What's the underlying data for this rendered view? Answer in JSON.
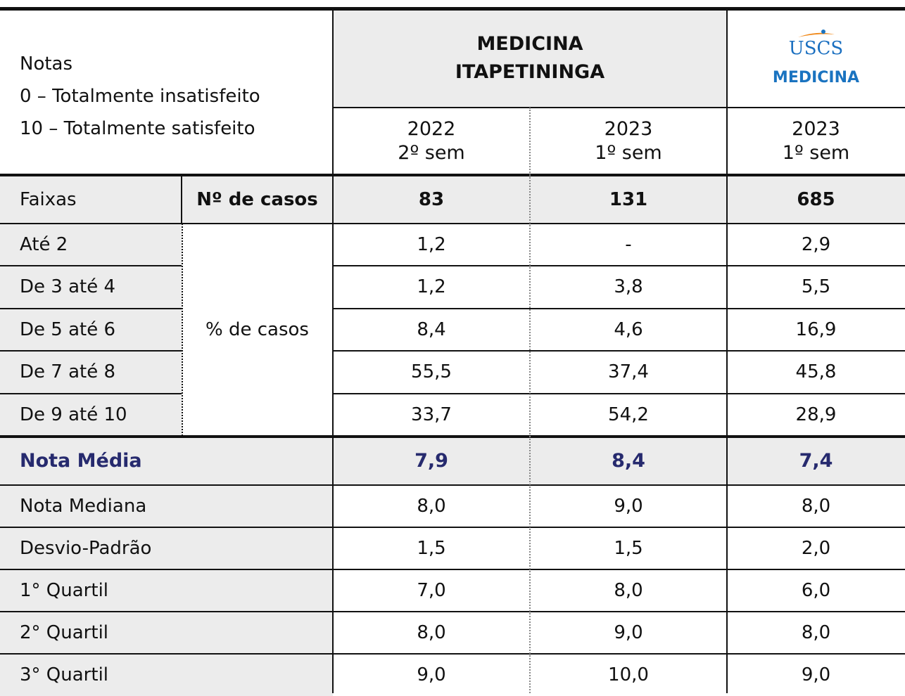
{
  "notes": [
    "Notas",
    "0 – Totalmente insatisfeito",
    "10 – Totalmente satisfeito"
  ],
  "group_header": [
    "MEDICINA",
    "ITAPETININGA"
  ],
  "logo": {
    "brand": "USCS",
    "label": "MEDICINA"
  },
  "columns": [
    {
      "year": "2022",
      "semester": "2º sem"
    },
    {
      "year": "2023",
      "semester": "1º sem"
    },
    {
      "year": "2023",
      "semester": "1º sem"
    }
  ],
  "cases_row": {
    "label": "Faixas",
    "sublabel": "Nº de casos",
    "values": [
      "83",
      "131",
      "685"
    ]
  },
  "range_label": "% de casos",
  "ranges": [
    {
      "label": "Até 2",
      "values": [
        "1,2",
        "-",
        "2,9"
      ]
    },
    {
      "label": "De 3 até 4",
      "values": [
        "1,2",
        "3,8",
        "5,5"
      ]
    },
    {
      "label": "De 5 até 6",
      "values": [
        "8,4",
        "4,6",
        "16,9"
      ]
    },
    {
      "label": "De 7 até 8",
      "values": [
        "55,5",
        "37,4",
        "45,8"
      ]
    },
    {
      "label": "De 9 até 10",
      "values": [
        "33,7",
        "54,2",
        "28,9"
      ]
    }
  ],
  "mean_row": {
    "label": "Nota Média",
    "values": [
      "7,9",
      "8,4",
      "7,4"
    ]
  },
  "stats": [
    {
      "label": "Nota Mediana",
      "values": [
        "8,0",
        "9,0",
        "8,0"
      ]
    },
    {
      "label": "Desvio-Padrão",
      "values": [
        "1,5",
        "1,5",
        "2,0"
      ]
    },
    {
      "label": "1° Quartil",
      "values": [
        "7,0",
        "8,0",
        "6,0"
      ]
    },
    {
      "label": "2° Quartil",
      "values": [
        "8,0",
        "9,0",
        "8,0"
      ]
    },
    {
      "label": "3° Quartil",
      "values": [
        "9,0",
        "10,0",
        "9,0"
      ]
    }
  ]
}
